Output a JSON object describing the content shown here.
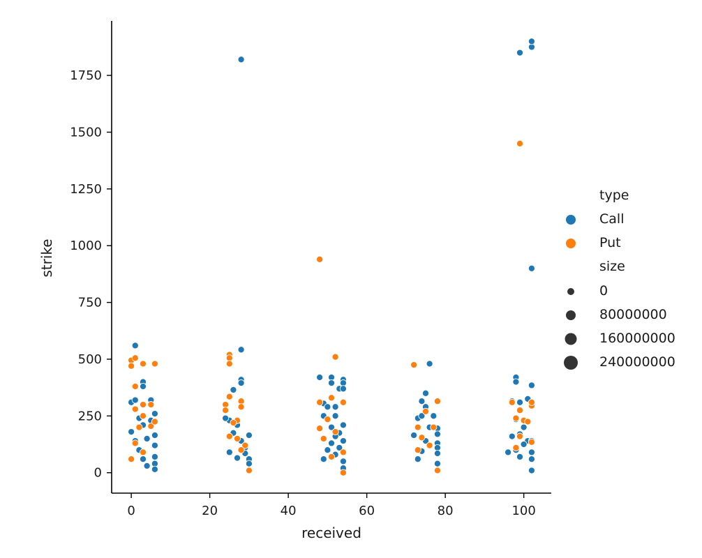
{
  "chart_data": {
    "type": "scatter",
    "xlabel": "received",
    "ylabel": "strike",
    "xlim": [
      -5,
      107
    ],
    "ylim": [
      -90,
      1990
    ],
    "x_ticks": [
      0,
      20,
      40,
      60,
      80,
      100
    ],
    "y_ticks": [
      0,
      250,
      500,
      750,
      1000,
      1250,
      1500,
      1750
    ],
    "x_tick_labels": [
      "0",
      "20",
      "40",
      "60",
      "80",
      "100"
    ],
    "y_tick_labels": [
      "0",
      "250",
      "500",
      "750",
      "1000",
      "1250",
      "1500",
      "1750"
    ],
    "grid": false,
    "legend": {
      "placement": "right",
      "hue_title": "type",
      "size_title": "size",
      "hue_entries": [
        {
          "label": "Call",
          "color": "#1f77b4"
        },
        {
          "label": "Put",
          "color": "#ff7f0e"
        }
      ],
      "size_entries": [
        "0",
        "80000000",
        "160000000",
        "240000000"
      ]
    },
    "series": [
      {
        "name": "Call",
        "color": "#1f77b4",
        "points": [
          {
            "x": 28,
            "y": 1820
          },
          {
            "x": 99,
            "y": 1850
          },
          {
            "x": 102,
            "y": 1875
          },
          {
            "x": 102,
            "y": 1900
          },
          {
            "x": 102,
            "y": 900
          },
          {
            "x": 1,
            "y": 560
          },
          {
            "x": 28,
            "y": 542
          },
          {
            "x": 0,
            "y": 310
          },
          {
            "x": 1,
            "y": 320
          },
          {
            "x": 3,
            "y": 400
          },
          {
            "x": 3,
            "y": 380
          },
          {
            "x": 2,
            "y": 240
          },
          {
            "x": 3,
            "y": 210
          },
          {
            "x": 4,
            "y": 150
          },
          {
            "x": 5,
            "y": 320
          },
          {
            "x": 5,
            "y": 230
          },
          {
            "x": 6,
            "y": 260
          },
          {
            "x": 6,
            "y": 165
          },
          {
            "x": 6,
            "y": 120
          },
          {
            "x": 6,
            "y": 70
          },
          {
            "x": 6,
            "y": 40
          },
          {
            "x": 6,
            "y": 15
          },
          {
            "x": 0,
            "y": 180
          },
          {
            "x": 1,
            "y": 140
          },
          {
            "x": 2,
            "y": 100
          },
          {
            "x": 3,
            "y": 60
          },
          {
            "x": 4,
            "y": 30
          },
          {
            "x": 26,
            "y": 365
          },
          {
            "x": 28,
            "y": 410
          },
          {
            "x": 28,
            "y": 395
          },
          {
            "x": 25,
            "y": 230
          },
          {
            "x": 26,
            "y": 175
          },
          {
            "x": 27,
            "y": 210
          },
          {
            "x": 28,
            "y": 140
          },
          {
            "x": 29,
            "y": 110
          },
          {
            "x": 30,
            "y": 165
          },
          {
            "x": 30,
            "y": 60
          },
          {
            "x": 30,
            "y": 40
          },
          {
            "x": 24,
            "y": 240
          },
          {
            "x": 25,
            "y": 90
          },
          {
            "x": 27,
            "y": 65
          },
          {
            "x": 29,
            "y": 85
          },
          {
            "x": 48,
            "y": 420
          },
          {
            "x": 51,
            "y": 420
          },
          {
            "x": 51,
            "y": 395
          },
          {
            "x": 54,
            "y": 410
          },
          {
            "x": 54,
            "y": 395
          },
          {
            "x": 53,
            "y": 370
          },
          {
            "x": 54,
            "y": 370
          },
          {
            "x": 49,
            "y": 305
          },
          {
            "x": 50,
            "y": 290
          },
          {
            "x": 52,
            "y": 290
          },
          {
            "x": 49,
            "y": 250
          },
          {
            "x": 52,
            "y": 250
          },
          {
            "x": 54,
            "y": 210
          },
          {
            "x": 51,
            "y": 200
          },
          {
            "x": 53,
            "y": 175
          },
          {
            "x": 52,
            "y": 160
          },
          {
            "x": 51,
            "y": 130
          },
          {
            "x": 54,
            "y": 140
          },
          {
            "x": 53,
            "y": 110
          },
          {
            "x": 52,
            "y": 80
          },
          {
            "x": 54,
            "y": 50
          },
          {
            "x": 54,
            "y": 20
          },
          {
            "x": 50,
            "y": 100
          },
          {
            "x": 49,
            "y": 60
          },
          {
            "x": 76,
            "y": 480
          },
          {
            "x": 75,
            "y": 350
          },
          {
            "x": 74,
            "y": 315
          },
          {
            "x": 75,
            "y": 290
          },
          {
            "x": 73,
            "y": 240
          },
          {
            "x": 74,
            "y": 250
          },
          {
            "x": 77,
            "y": 250
          },
          {
            "x": 76,
            "y": 200
          },
          {
            "x": 78,
            "y": 195
          },
          {
            "x": 78,
            "y": 170
          },
          {
            "x": 78,
            "y": 130
          },
          {
            "x": 78,
            "y": 110
          },
          {
            "x": 78,
            "y": 85
          },
          {
            "x": 78,
            "y": 40
          },
          {
            "x": 75,
            "y": 140
          },
          {
            "x": 74,
            "y": 95
          },
          {
            "x": 72,
            "y": 165
          },
          {
            "x": 73,
            "y": 60
          },
          {
            "x": 98,
            "y": 420
          },
          {
            "x": 98,
            "y": 400
          },
          {
            "x": 102,
            "y": 385
          },
          {
            "x": 101,
            "y": 325
          },
          {
            "x": 97,
            "y": 315
          },
          {
            "x": 99,
            "y": 310
          },
          {
            "x": 98,
            "y": 235
          },
          {
            "x": 100,
            "y": 200
          },
          {
            "x": 99,
            "y": 170
          },
          {
            "x": 97,
            "y": 160
          },
          {
            "x": 101,
            "y": 140
          },
          {
            "x": 100,
            "y": 125
          },
          {
            "x": 102,
            "y": 140
          },
          {
            "x": 102,
            "y": 90
          },
          {
            "x": 102,
            "y": 60
          },
          {
            "x": 102,
            "y": 10
          },
          {
            "x": 98,
            "y": 100
          },
          {
            "x": 99,
            "y": 70
          },
          {
            "x": 96,
            "y": 90
          }
        ]
      },
      {
        "name": "Put",
        "color": "#ff7f0e",
        "points": [
          {
            "x": 99,
            "y": 1450
          },
          {
            "x": 48,
            "y": 940
          },
          {
            "x": 0,
            "y": 495
          },
          {
            "x": 1,
            "y": 505
          },
          {
            "x": 0,
            "y": 470
          },
          {
            "x": 3,
            "y": 480
          },
          {
            "x": 6,
            "y": 480
          },
          {
            "x": 1,
            "y": 380
          },
          {
            "x": 1,
            "y": 280
          },
          {
            "x": 3,
            "y": 300
          },
          {
            "x": 3,
            "y": 250
          },
          {
            "x": 5,
            "y": 300
          },
          {
            "x": 5,
            "y": 205
          },
          {
            "x": 6,
            "y": 225
          },
          {
            "x": 2,
            "y": 200
          },
          {
            "x": 1,
            "y": 130
          },
          {
            "x": 3,
            "y": 90
          },
          {
            "x": 0,
            "y": 60
          },
          {
            "x": 25,
            "y": 520
          },
          {
            "x": 25,
            "y": 505
          },
          {
            "x": 25,
            "y": 480
          },
          {
            "x": 25,
            "y": 335
          },
          {
            "x": 24,
            "y": 300
          },
          {
            "x": 24,
            "y": 275
          },
          {
            "x": 28,
            "y": 315
          },
          {
            "x": 28,
            "y": 290
          },
          {
            "x": 27,
            "y": 230
          },
          {
            "x": 26,
            "y": 220
          },
          {
            "x": 27,
            "y": 150
          },
          {
            "x": 29,
            "y": 120
          },
          {
            "x": 28,
            "y": 100
          },
          {
            "x": 30,
            "y": 10
          },
          {
            "x": 25,
            "y": 160
          },
          {
            "x": 52,
            "y": 510
          },
          {
            "x": 51,
            "y": 330
          },
          {
            "x": 48,
            "y": 310
          },
          {
            "x": 54,
            "y": 310
          },
          {
            "x": 48,
            "y": 195
          },
          {
            "x": 50,
            "y": 235
          },
          {
            "x": 52,
            "y": 180
          },
          {
            "x": 49,
            "y": 150
          },
          {
            "x": 54,
            "y": 90
          },
          {
            "x": 54,
            "y": 0
          },
          {
            "x": 51,
            "y": 70
          },
          {
            "x": 72,
            "y": 475
          },
          {
            "x": 78,
            "y": 315
          },
          {
            "x": 73,
            "y": 200
          },
          {
            "x": 75,
            "y": 270
          },
          {
            "x": 77,
            "y": 200
          },
          {
            "x": 74,
            "y": 155
          },
          {
            "x": 76,
            "y": 120
          },
          {
            "x": 78,
            "y": 10
          },
          {
            "x": 73,
            "y": 100
          },
          {
            "x": 97,
            "y": 310
          },
          {
            "x": 99,
            "y": 275
          },
          {
            "x": 100,
            "y": 230
          },
          {
            "x": 101,
            "y": 225
          },
          {
            "x": 98,
            "y": 240
          },
          {
            "x": 102,
            "y": 295
          },
          {
            "x": 102,
            "y": 310
          },
          {
            "x": 102,
            "y": 135
          },
          {
            "x": 99,
            "y": 160
          },
          {
            "x": 98,
            "y": 110
          }
        ]
      }
    ]
  }
}
